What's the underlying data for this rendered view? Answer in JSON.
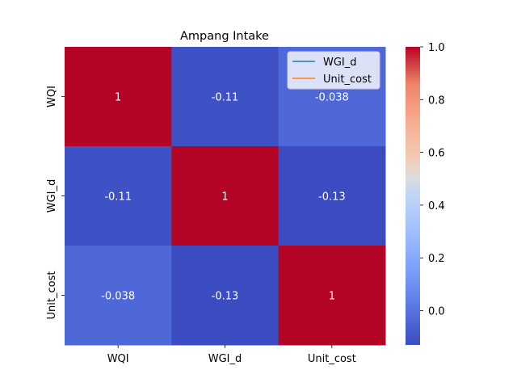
{
  "chart_data": {
    "type": "heatmap",
    "title": "Ampang Intake",
    "x_categories": [
      "WQI",
      "WGI_d",
      "Unit_cost"
    ],
    "y_categories": [
      "WQI",
      "WGI_d",
      "Unit_cost"
    ],
    "matrix": [
      [
        1,
        -0.11,
        -0.038
      ],
      [
        -0.11,
        1,
        -0.13
      ],
      [
        -0.038,
        -0.13,
        1
      ]
    ],
    "cell_labels": [
      [
        "1",
        "-0.11",
        "-0.038"
      ],
      [
        "-0.11",
        "1",
        "-0.13"
      ],
      [
        "-0.038",
        "-0.13",
        "1"
      ]
    ],
    "colormap": "coolwarm",
    "colorbar": {
      "range": [
        -0.13,
        1.0
      ],
      "ticks": [
        0.0,
        0.2,
        0.4,
        0.6,
        0.8,
        1.0
      ],
      "tick_labels": [
        "0.0",
        "0.2",
        "0.4",
        "0.6",
        "0.8",
        "1.0"
      ]
    },
    "legend": {
      "placement": "top-right",
      "entries": [
        {
          "label": "WGI_d",
          "color": "#1f77b4"
        },
        {
          "label": "Unit_cost",
          "color": "#ff7f0e"
        }
      ]
    }
  }
}
